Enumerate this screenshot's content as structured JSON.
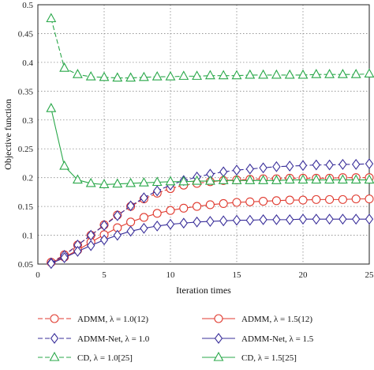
{
  "chart_data": {
    "type": "line",
    "title": "",
    "xlabel": "Iteration times",
    "ylabel": "Objective function",
    "xlim": [
      0,
      25
    ],
    "ylim": [
      0.05,
      0.5
    ],
    "xticks": [
      "0",
      "5",
      "10",
      "15",
      "20",
      "25"
    ],
    "yticks": [
      "0.05",
      "0.1",
      "0.15",
      "0.2",
      "0.25",
      "0.3",
      "0.35",
      "0.4",
      "0.45",
      "0.5"
    ],
    "grid": true,
    "grid_style": "dotted",
    "legend_placement": "below",
    "x": [
      1,
      2,
      3,
      4,
      5,
      6,
      7,
      8,
      9,
      10,
      11,
      12,
      13,
      14,
      15,
      16,
      17,
      18,
      19,
      20,
      21,
      22,
      23,
      24,
      25
    ],
    "series": [
      {
        "name": "ADMM, λ = 1.0(12)",
        "color": "#e03a2f",
        "marker": "circle",
        "dash": true,
        "values": [
          0.053,
          0.066,
          0.083,
          0.1,
          0.118,
          0.135,
          0.15,
          0.163,
          0.173,
          0.181,
          0.187,
          0.19,
          0.193,
          0.195,
          0.196,
          0.197,
          0.198,
          0.198,
          0.199,
          0.199,
          0.199,
          0.199,
          0.2,
          0.2,
          0.2
        ]
      },
      {
        "name": "ADMM, λ = 1.5(12)",
        "color": "#e03a2f",
        "marker": "circle",
        "dash": false,
        "values": [
          0.053,
          0.062,
          0.074,
          0.088,
          0.101,
          0.113,
          0.123,
          0.131,
          0.138,
          0.143,
          0.147,
          0.15,
          0.153,
          0.155,
          0.157,
          0.158,
          0.159,
          0.16,
          0.161,
          0.161,
          0.162,
          0.162,
          0.162,
          0.163,
          0.163
        ]
      },
      {
        "name": "ADMM-Net, λ = 1.0",
        "color": "#3a2f9a",
        "marker": "diamond",
        "dash": true,
        "values": [
          0.052,
          0.065,
          0.083,
          0.1,
          0.117,
          0.134,
          0.151,
          0.165,
          0.177,
          0.187,
          0.195,
          0.201,
          0.206,
          0.21,
          0.213,
          0.215,
          0.217,
          0.219,
          0.22,
          0.221,
          0.222,
          0.222,
          0.223,
          0.223,
          0.224
        ]
      },
      {
        "name": "ADMM-Net, λ = 1.5",
        "color": "#3a2f9a",
        "marker": "diamond",
        "dash": false,
        "values": [
          0.051,
          0.061,
          0.072,
          0.082,
          0.092,
          0.1,
          0.107,
          0.112,
          0.116,
          0.119,
          0.121,
          0.123,
          0.124,
          0.125,
          0.126,
          0.126,
          0.127,
          0.127,
          0.127,
          0.128,
          0.128,
          0.128,
          0.128,
          0.128,
          0.128
        ]
      },
      {
        "name": "CD, λ = 1.0[25]",
        "color": "#2aa84a",
        "marker": "triangle",
        "dash": true,
        "values": [
          0.476,
          0.39,
          0.379,
          0.375,
          0.374,
          0.373,
          0.373,
          0.374,
          0.375,
          0.375,
          0.376,
          0.376,
          0.377,
          0.377,
          0.377,
          0.378,
          0.378,
          0.378,
          0.378,
          0.378,
          0.379,
          0.379,
          0.379,
          0.379,
          0.38
        ]
      },
      {
        "name": "CD, λ = 1.5[25]",
        "color": "#2aa84a",
        "marker": "triangle",
        "dash": false,
        "values": [
          0.32,
          0.22,
          0.196,
          0.19,
          0.188,
          0.189,
          0.19,
          0.191,
          0.192,
          0.193,
          0.193,
          0.194,
          0.194,
          0.195,
          0.195,
          0.195,
          0.195,
          0.195,
          0.196,
          0.196,
          0.196,
          0.196,
          0.196,
          0.196,
          0.196
        ]
      }
    ]
  }
}
